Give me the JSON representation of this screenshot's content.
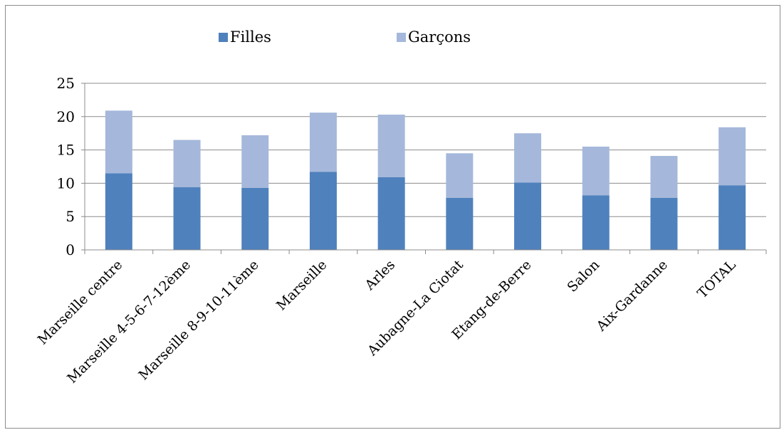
{
  "chart_data": {
    "type": "bar",
    "stacked": true,
    "categories": [
      "Marseille centre",
      "Marseille 4-5-6-7-12ème",
      "Marseille 8-9-10-11ème",
      "Marseille",
      "Arles",
      "Aubagne-La Ciotat",
      "Etang-de-Berre",
      "Salon",
      "Aix-Gardanne",
      "TOTAL"
    ],
    "series": [
      {
        "name": "Filles",
        "color": "#4f81bd",
        "values": [
          11.5,
          9.4,
          9.3,
          11.7,
          10.9,
          7.8,
          10.1,
          8.2,
          7.8,
          9.7
        ]
      },
      {
        "name": "Garçons",
        "color": "#a5b8db",
        "values": [
          9.4,
          7.1,
          7.9,
          8.9,
          9.4,
          6.7,
          7.4,
          7.3,
          6.3,
          8.7
        ]
      }
    ],
    "ylim": [
      0,
      25
    ],
    "yticks": [
      0,
      5,
      10,
      15,
      20,
      25
    ],
    "grid": true,
    "legend_position": "top"
  }
}
